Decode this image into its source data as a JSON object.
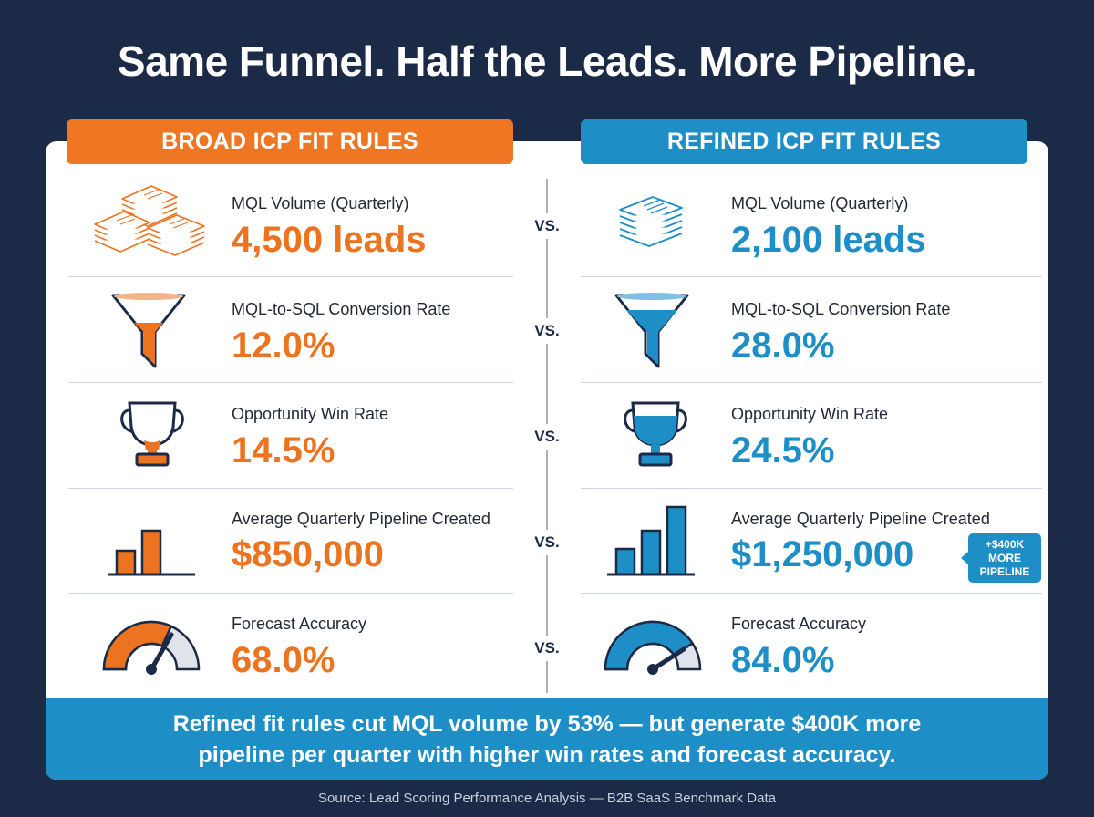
{
  "headline": "Same Funnel. Half the Leads. More Pipeline.",
  "columns": {
    "broad": "BROAD ICP FIT RULES",
    "refined": "REFINED ICP FIT RULES"
  },
  "vs_label": "VS.",
  "metrics": [
    {
      "label": "MQL Volume (Quarterly)",
      "broad": "4,500 leads",
      "refined": "2,100 leads",
      "icon": "document-stack-icon"
    },
    {
      "label": "MQL-to-SQL Conversion Rate",
      "broad": "12.0%",
      "refined": "28.0%",
      "icon": "funnel-icon"
    },
    {
      "label": "Opportunity Win Rate",
      "broad": "14.5%",
      "refined": "24.5%",
      "icon": "trophy-icon"
    },
    {
      "label": "Average Quarterly Pipeline Created",
      "broad": "$850,000",
      "refined": "$1,250,000",
      "icon": "bar-chart-icon"
    },
    {
      "label": "Forecast Accuracy",
      "broad": "68.0%",
      "refined": "84.0%",
      "icon": "gauge-icon"
    }
  ],
  "badge": {
    "line1": "+$400K",
    "line2": "MORE",
    "line3": "PIPELINE"
  },
  "banner": {
    "line1": "Refined fit rules cut MQL volume by 53% — but generate $400K more",
    "line2": "pipeline per quarter with higher win rates and forecast accuracy."
  },
  "source": "Source: Lead Scoring Performance Analysis — B2B SaaS Benchmark Data",
  "colors": {
    "broad": "#ef7622",
    "refined": "#1e8fc6",
    "background": "#1b2a47"
  }
}
